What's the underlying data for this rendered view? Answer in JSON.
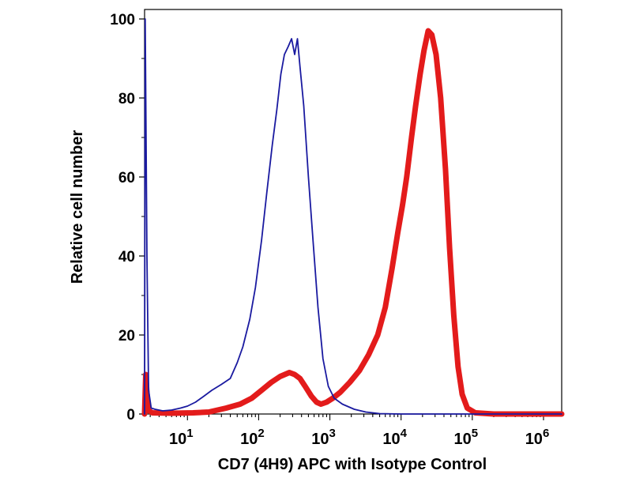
{
  "chart_data": {
    "type": "line",
    "title": "",
    "xlabel": "CD7 (4H9) APC with Isotype Control",
    "ylabel": "Relative cell number",
    "x_scale": "log",
    "xlim": [
      2.5,
      1800000
    ],
    "ylim": [
      0,
      100
    ],
    "grid": false,
    "y_ticks": [
      "0",
      "20",
      "40",
      "60",
      "80",
      "100"
    ],
    "y_tick_values": [
      0,
      20,
      40,
      60,
      80,
      100
    ],
    "x_ticks": [
      {
        "base": "10",
        "exp": "1",
        "value": 10
      },
      {
        "base": "10",
        "exp": "2",
        "value": 100
      },
      {
        "base": "10",
        "exp": "3",
        "value": 1000
      },
      {
        "base": "10",
        "exp": "4",
        "value": 10000
      },
      {
        "base": "10",
        "exp": "5",
        "value": 100000
      },
      {
        "base": "10",
        "exp": "6",
        "value": 1000000
      }
    ],
    "series": [
      {
        "color": "#1a1aa0",
        "points": [
          [
            2.5,
            0
          ],
          [
            2.55,
            100
          ],
          [
            2.7,
            40
          ],
          [
            2.85,
            6
          ],
          [
            3.1,
            1.5
          ],
          [
            3.5,
            1.2
          ],
          [
            4.5,
            0.8
          ],
          [
            6,
            1
          ],
          [
            8,
            1.5
          ],
          [
            10,
            2
          ],
          [
            13,
            3
          ],
          [
            17,
            4.5
          ],
          [
            22,
            6
          ],
          [
            30,
            7.5
          ],
          [
            40,
            9
          ],
          [
            50,
            13
          ],
          [
            60,
            17
          ],
          [
            75,
            24
          ],
          [
            90,
            32
          ],
          [
            110,
            44
          ],
          [
            130,
            56
          ],
          [
            155,
            68
          ],
          [
            180,
            77
          ],
          [
            205,
            86
          ],
          [
            230,
            91
          ],
          [
            260,
            93
          ],
          [
            290,
            95
          ],
          [
            320,
            91
          ],
          [
            350,
            95
          ],
          [
            380,
            88
          ],
          [
            430,
            78
          ],
          [
            500,
            60
          ],
          [
            580,
            44
          ],
          [
            680,
            27
          ],
          [
            800,
            14
          ],
          [
            950,
            7
          ],
          [
            1150,
            4
          ],
          [
            1500,
            2.5
          ],
          [
            2200,
            1.2
          ],
          [
            3200,
            0.5
          ],
          [
            5000,
            0.1
          ],
          [
            10000,
            0
          ],
          [
            1800000,
            0
          ]
        ]
      },
      {
        "color": "#e31b1b",
        "points": [
          [
            2.5,
            0
          ],
          [
            2.6,
            10
          ],
          [
            2.8,
            1
          ],
          [
            3.2,
            0.3
          ],
          [
            6,
            0.2
          ],
          [
            12,
            0.3
          ],
          [
            20,
            0.5
          ],
          [
            35,
            1.5
          ],
          [
            55,
            2.5
          ],
          [
            80,
            4
          ],
          [
            110,
            6
          ],
          [
            150,
            8
          ],
          [
            200,
            9.5
          ],
          [
            270,
            10.5
          ],
          [
            320,
            10
          ],
          [
            380,
            9
          ],
          [
            450,
            7
          ],
          [
            550,
            4.5
          ],
          [
            650,
            3
          ],
          [
            750,
            2.5
          ],
          [
            900,
            3
          ],
          [
            1100,
            4
          ],
          [
            1400,
            5.5
          ],
          [
            1900,
            8
          ],
          [
            2600,
            11
          ],
          [
            3500,
            15
          ],
          [
            4700,
            20
          ],
          [
            6000,
            27
          ],
          [
            7500,
            37
          ],
          [
            9000,
            46
          ],
          [
            10500,
            53
          ],
          [
            12000,
            60
          ],
          [
            14000,
            70
          ],
          [
            16000,
            78
          ],
          [
            18500,
            86
          ],
          [
            21000,
            92
          ],
          [
            24000,
            97
          ],
          [
            27000,
            96
          ],
          [
            31000,
            91
          ],
          [
            36000,
            80
          ],
          [
            42000,
            62
          ],
          [
            48000,
            42
          ],
          [
            55000,
            25
          ],
          [
            63000,
            12
          ],
          [
            72000,
            5
          ],
          [
            85000,
            1.5
          ],
          [
            110000,
            0.3
          ],
          [
            200000,
            0
          ],
          [
            1800000,
            0
          ]
        ]
      }
    ]
  }
}
